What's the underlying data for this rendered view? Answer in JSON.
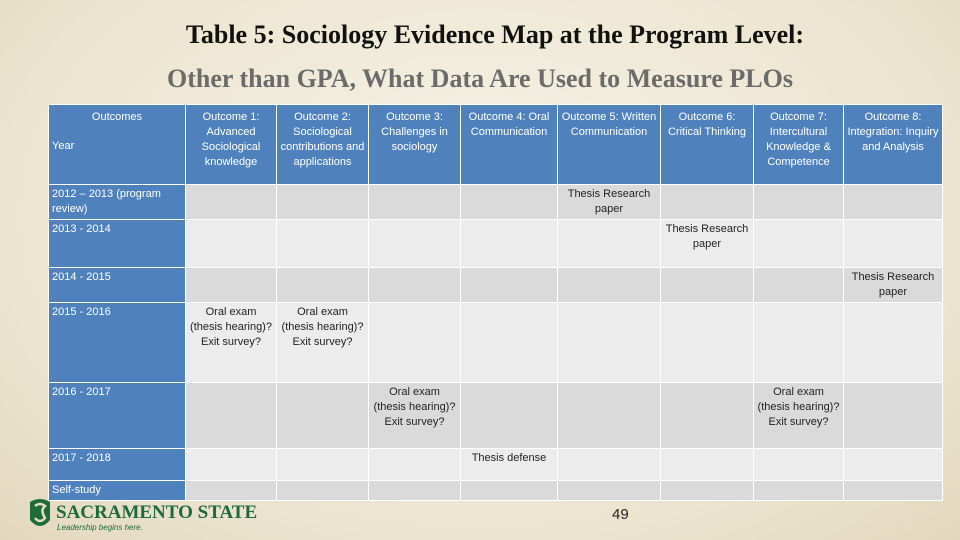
{
  "title": "Table 5: Sociology Evidence Map at the Program Level:",
  "subtitle": "Other than GPA, What Data Are Used to Measure PLOs",
  "table": {
    "corner_top": "Outcomes",
    "corner_left": "Year",
    "columns": [
      "Outcome 1: Advanced Sociological knowledge",
      "Outcome 2: Sociological contributions and applications",
      "Outcome 3: Challenges in sociology",
      "Outcome 4: Oral Communication",
      "Outcome 5: Written Communication",
      "Outcome 6: Critical Thinking",
      "Outcome 7: Intercultural Knowledge & Competence",
      "Outcome 8: Integration: Inquiry and Analysis"
    ],
    "rows": [
      {
        "label": "2012 – 2013 (program review)",
        "cells": [
          null,
          null,
          null,
          null,
          "Thesis Research paper",
          null,
          null,
          null
        ]
      },
      {
        "label": "2013 - 2014",
        "cells": [
          null,
          null,
          null,
          null,
          null,
          "Thesis Research paper",
          null,
          null
        ]
      },
      {
        "label": "2014 - 2015",
        "cells": [
          null,
          null,
          null,
          null,
          null,
          null,
          null,
          "Thesis Research paper"
        ]
      },
      {
        "label": "2015 - 2016",
        "cells": [
          "Oral exam (thesis hearing)? Exit survey?",
          "Oral exam (thesis hearing)? Exit survey?",
          null,
          null,
          null,
          null,
          null,
          null
        ]
      },
      {
        "label": "2016 - 2017",
        "cells": [
          null,
          null,
          "Oral exam (thesis hearing)? Exit survey?",
          null,
          null,
          null,
          "Oral exam (thesis hearing)? Exit survey?",
          null
        ]
      },
      {
        "label": "2017 - 2018",
        "cells": [
          null,
          null,
          null,
          "Thesis defense",
          null,
          null,
          null,
          null
        ]
      },
      {
        "label": "Self-study",
        "cells": [
          null,
          null,
          null,
          null,
          null,
          null,
          null,
          null
        ]
      }
    ]
  },
  "footer": {
    "logo_name": "SACRAMENTO STATE",
    "logo_tagline": "Leadership begins here.",
    "page_number": "49"
  }
}
